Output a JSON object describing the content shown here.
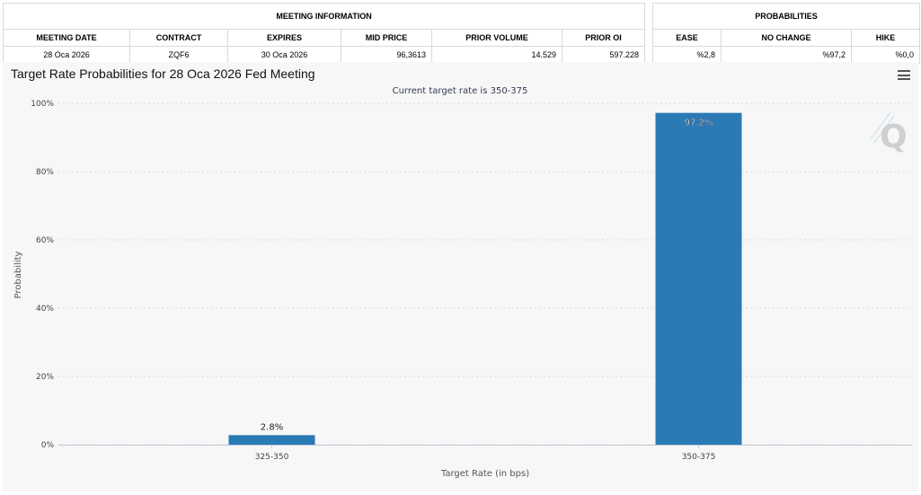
{
  "meeting_info": {
    "group_title": "MEETING INFORMATION",
    "headers": [
      "MEETING DATE",
      "CONTRACT",
      "EXPIRES",
      "MID PRICE",
      "PRIOR VOLUME",
      "PRIOR OI"
    ],
    "row": [
      "28 Oca 2026",
      "ZQF6",
      "30 Oca 2026",
      "96,3613",
      "14.529",
      "597.228"
    ]
  },
  "probabilities": {
    "group_title": "PROBABILITIES",
    "headers": [
      "EASE",
      "NO CHANGE",
      "HIKE"
    ],
    "row": [
      "%2,8",
      "%97,2",
      "%0,0"
    ]
  },
  "chart": {
    "title": "Target Rate Probabilities for 28 Oca 2026 Fed Meeting",
    "menu_icon": "hamburger-menu-icon",
    "watermark_icon": "q-logo-icon",
    "bar_color": "#2a7ab5"
  },
  "chart_data": {
    "type": "bar",
    "subtitle": "Current target rate is 350-375",
    "categories": [
      "325-350",
      "350-375"
    ],
    "values": [
      2.8,
      97.2
    ],
    "value_labels": [
      "2.8%",
      "97.2%"
    ],
    "xlabel": "Target Rate (in bps)",
    "ylabel": "Probability",
    "ylim": [
      0,
      100
    ],
    "yticks": [
      0,
      20,
      40,
      60,
      80,
      100
    ],
    "ytick_labels": [
      "0%",
      "20%",
      "40%",
      "60%",
      "80%",
      "100%"
    ],
    "grid": true,
    "legend": "none"
  }
}
